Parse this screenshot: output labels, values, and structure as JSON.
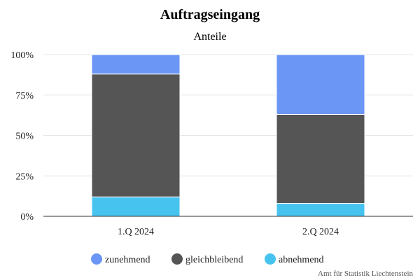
{
  "chart_data": {
    "type": "bar",
    "stacked": true,
    "title": "Auftragseingang",
    "subtitle": "Anteile",
    "categories": [
      "1.Q 2024",
      "2.Q 2024"
    ],
    "series": [
      {
        "name": "abnehmend",
        "color": "#47c3f0",
        "values": [
          12,
          8
        ]
      },
      {
        "name": "gleichbleibend",
        "color": "#555555",
        "values": [
          76,
          55
        ]
      },
      {
        "name": "zunehmend",
        "color": "#6b96f5",
        "values": [
          12,
          37
        ]
      }
    ],
    "ylim": [
      0,
      100
    ],
    "yticks": [
      "0%",
      "25%",
      "50%",
      "75%",
      "100%"
    ],
    "legend_order": [
      "zunehmend",
      "gleichbleibend",
      "abnehmend"
    ],
    "legend_position": "bottom",
    "grid": true,
    "credit": "Amt für Statistik Liechtenstein"
  }
}
